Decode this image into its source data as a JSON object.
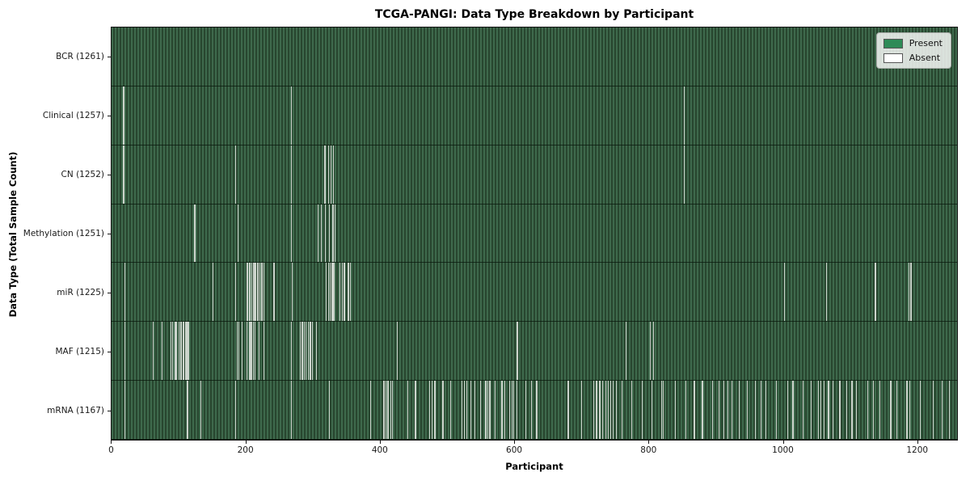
{
  "title": "TCGA-PANGI: Data Type Breakdown by Participant",
  "colors": {
    "present": "#2e8b57",
    "absent": "#ffffff",
    "bar_stripe_light": "#3e694c",
    "bar_stripe_dark": "#28462f",
    "absent_line": "#ccd4cc",
    "axis": "#141414"
  },
  "chart_data": {
    "type": "heatmap",
    "title": "TCGA-PANGI: Data Type Breakdown by Participant",
    "xlabel": "Participant",
    "ylabel": "Data Type (Total Sample Count)",
    "x_ticks": [
      0,
      200,
      400,
      600,
      800,
      1000,
      1200
    ],
    "xlim": [
      -0.5,
      1260.5
    ],
    "n_participants": 1261,
    "grid": false,
    "legend_position": "upper right",
    "legend": [
      {
        "label": "Present",
        "color": "#2e8b57"
      },
      {
        "label": "Absent",
        "color": "#ffffff"
      }
    ],
    "rows": [
      {
        "name": "BCR",
        "total": 1261,
        "tick_label": "BCR (1261)",
        "absent_participants": []
      },
      {
        "name": "Clinical",
        "total": 1257,
        "tick_label": "Clinical (1257)",
        "absent_participants": [
          16,
          17,
          267,
          853
        ]
      },
      {
        "name": "CN",
        "total": 1252,
        "tick_label": "CN (1252)",
        "absent_participants": [
          16,
          17,
          184,
          267,
          317,
          322,
          326,
          330,
          853
        ]
      },
      {
        "name": "Methylation",
        "total": 1251,
        "tick_label": "Methylation (1251)",
        "absent_participants": [
          122,
          124,
          187,
          267,
          307,
          312,
          318,
          324,
          329,
          332
        ]
      },
      {
        "name": "miR",
        "total": 1225,
        "tick_label": "miR (1225)",
        "absent_participants": [
          19,
          150,
          184,
          201,
          202,
          204,
          206,
          208,
          211,
          213,
          214,
          217,
          218,
          220,
          223,
          226,
          241,
          268,
          319,
          322,
          325,
          328,
          330,
          331,
          339,
          343,
          345,
          347,
          351,
          353,
          355,
          1002,
          1065,
          1138,
          1188,
          1191
        ]
      },
      {
        "name": "MAF",
        "total": 1215,
        "tick_label": "MAF (1215)",
        "absent_participants": [
          19,
          61,
          74,
          87,
          90,
          93,
          95,
          96,
          99,
          102,
          103,
          105,
          106,
          107,
          109,
          110,
          112,
          114,
          186,
          189,
          193,
          201,
          204,
          205,
          207,
          208,
          210,
          213,
          219,
          226,
          267,
          280,
          283,
          284,
          286,
          289,
          292,
          295,
          296,
          298,
          304,
          425,
          604,
          766,
          802,
          807
        ]
      },
      {
        "name": "mRNA",
        "total": 1167,
        "tick_label": "mRNA (1167)",
        "absent_participants": [
          19,
          112,
          132,
          184,
          267,
          324,
          385,
          405,
          408,
          411,
          415,
          418,
          441,
          452,
          473,
          477,
          481,
          493,
          505,
          521,
          525,
          529,
          535,
          541,
          549,
          557,
          560,
          563,
          571,
          581,
          585,
          593,
          596,
          599,
          603,
          617,
          625,
          633,
          680,
          700,
          718,
          722,
          727,
          731,
          736,
          740,
          743,
          747,
          752,
          760,
          775,
          790,
          805,
          819,
          822,
          840,
          855,
          868,
          880,
          895,
          905,
          912,
          918,
          924,
          935,
          947,
          959,
          967,
          975,
          990,
          1007,
          1015,
          1030,
          1042,
          1053,
          1057,
          1061,
          1068,
          1075,
          1085,
          1095,
          1103,
          1110,
          1127,
          1135,
          1145,
          1161,
          1170,
          1185,
          1189,
          1205,
          1224,
          1237,
          1248
        ]
      }
    ]
  }
}
